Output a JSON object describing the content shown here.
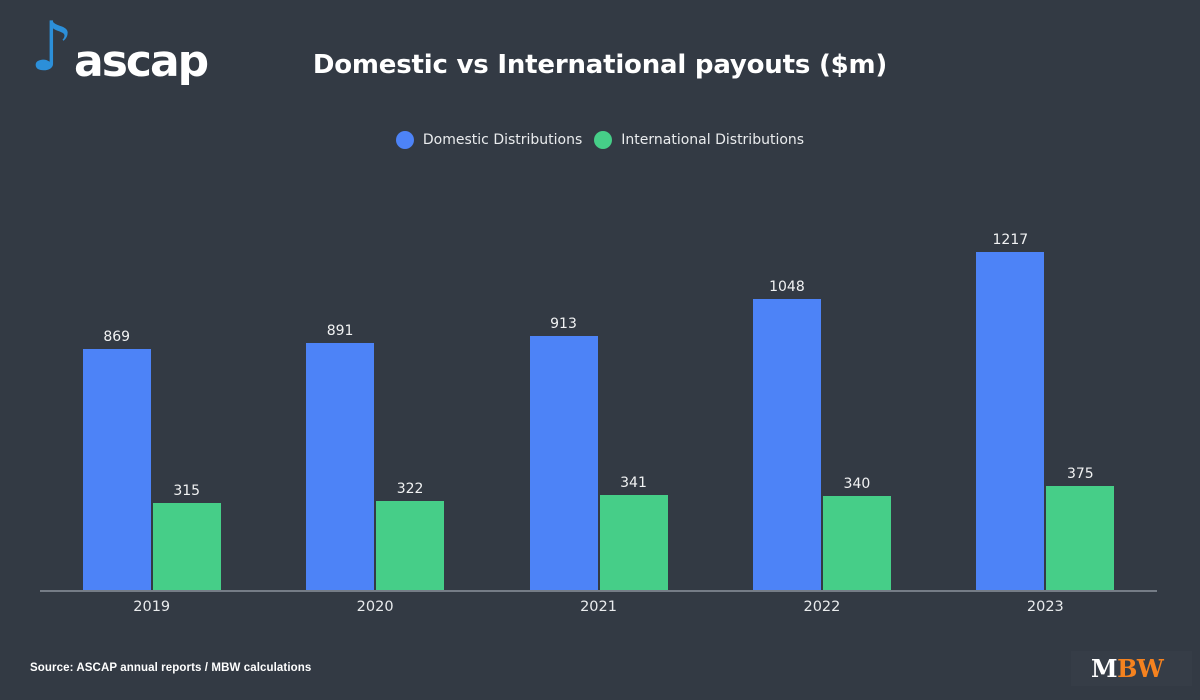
{
  "page": {
    "background_color": "#333a44"
  },
  "header": {
    "brand": "ascap",
    "note_icon_glyph": "♪",
    "note_icon_color": "#2c8fd9",
    "title": "Domestic vs International payouts ($m)"
  },
  "legend": [
    {
      "label": "Domestic Distributions",
      "color": "#4d83f7"
    },
    {
      "label": "International Distributions",
      "color": "#46ce88"
    }
  ],
  "chart_data": {
    "type": "bar",
    "title": "Domestic vs International payouts ($m)",
    "categories": [
      "2019",
      "2020",
      "2021",
      "2022",
      "2023"
    ],
    "series": [
      {
        "name": "Domestic Distributions",
        "color": "#4d83f7",
        "values": [
          869,
          891,
          913,
          1048,
          1217
        ]
      },
      {
        "name": "International Distributions",
        "color": "#46ce88",
        "values": [
          315,
          322,
          341,
          340,
          375
        ]
      }
    ],
    "xlabel": "",
    "ylabel": "",
    "ylim": [
      0,
      1300
    ],
    "grid": false,
    "y_axis_visible": false,
    "value_labels": true,
    "legend_position": "top",
    "axis_line_color": "#757c86"
  },
  "footer": {
    "source": "Source: ASCAP annual reports / MBW calculations",
    "mbw_logo": {
      "m": "M",
      "bw": "BW",
      "m_color": "#ffffff",
      "bw_color": "#f5821f"
    }
  }
}
